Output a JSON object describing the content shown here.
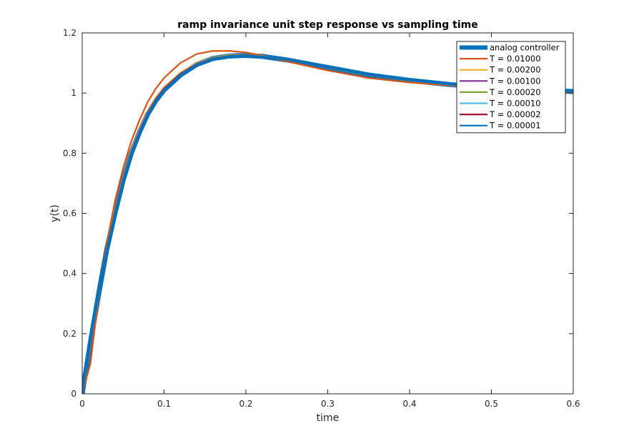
{
  "chart_data": {
    "type": "line",
    "title": "ramp invariance unit step response vs sampling time",
    "xlabel": "time",
    "ylabel": "y(t)",
    "xlim": [
      0,
      0.6
    ],
    "ylim": [
      0,
      1.2
    ],
    "xticks": [
      0,
      0.1,
      0.2,
      0.3,
      0.4,
      0.5,
      0.6
    ],
    "xtick_labels": [
      "0",
      "0.1",
      "0.2",
      "0.3",
      "0.4",
      "0.5",
      "0.6"
    ],
    "yticks": [
      0,
      0.2,
      0.4,
      0.6,
      0.8,
      1.0,
      1.2
    ],
    "ytick_labels": [
      "0",
      "0.2",
      "0.4",
      "0.6",
      "0.8",
      "1",
      "1.2"
    ],
    "grid": false,
    "legend_position": "top-right",
    "series": [
      {
        "name": "analog controller",
        "color": "#0072BD",
        "x": [
          0,
          0.01,
          0.02,
          0.03,
          0.04,
          0.05,
          0.06,
          0.07,
          0.08,
          0.09,
          0.1,
          0.12,
          0.14,
          0.16,
          0.18,
          0.2,
          0.22,
          0.25,
          0.3,
          0.35,
          0.4,
          0.45,
          0.5,
          0.55,
          0.6
        ],
        "y": [
          0,
          0.17,
          0.33,
          0.48,
          0.6,
          0.71,
          0.8,
          0.87,
          0.93,
          0.975,
          1.01,
          1.06,
          1.095,
          1.115,
          1.123,
          1.125,
          1.122,
          1.11,
          1.085,
          1.06,
          1.042,
          1.028,
          1.018,
          1.01,
          1.005
        ]
      },
      {
        "name": "T = 0.01000",
        "color": "#D95319",
        "x": [
          0,
          0.01,
          0.02,
          0.03,
          0.04,
          0.05,
          0.06,
          0.07,
          0.08,
          0.09,
          0.1,
          0.12,
          0.14,
          0.16,
          0.18,
          0.2,
          0.22,
          0.25,
          0.3,
          0.35,
          0.4,
          0.45,
          0.5,
          0.55,
          0.6
        ],
        "y": [
          0,
          0.1,
          0.32,
          0.5,
          0.64,
          0.75,
          0.84,
          0.91,
          0.97,
          1.015,
          1.05,
          1.1,
          1.13,
          1.14,
          1.14,
          1.135,
          1.125,
          1.105,
          1.075,
          1.05,
          1.035,
          1.025,
          1.015,
          1.008,
          1.003
        ]
      },
      {
        "name": "T = 0.00200",
        "color": "#EDB120",
        "x": [
          0,
          0.01,
          0.02,
          0.03,
          0.04,
          0.05,
          0.06,
          0.07,
          0.08,
          0.09,
          0.1,
          0.12,
          0.14,
          0.16,
          0.18,
          0.2,
          0.22,
          0.25,
          0.3,
          0.35,
          0.4,
          0.45,
          0.5,
          0.55,
          0.6
        ],
        "y": [
          0,
          0.16,
          0.33,
          0.48,
          0.61,
          0.72,
          0.81,
          0.88,
          0.94,
          0.985,
          1.02,
          1.068,
          1.1,
          1.118,
          1.126,
          1.127,
          1.123,
          1.11,
          1.084,
          1.059,
          1.041,
          1.027,
          1.017,
          1.01,
          1.005
        ]
      },
      {
        "name": "T = 0.00100",
        "color": "#7E2F8E",
        "x": [
          0,
          0.01,
          0.02,
          0.03,
          0.04,
          0.05,
          0.06,
          0.07,
          0.08,
          0.09,
          0.1,
          0.12,
          0.14,
          0.16,
          0.18,
          0.2,
          0.22,
          0.25,
          0.3,
          0.35,
          0.4,
          0.45,
          0.5,
          0.55,
          0.6
        ],
        "y": [
          0,
          0.165,
          0.33,
          0.48,
          0.605,
          0.715,
          0.805,
          0.875,
          0.935,
          0.98,
          1.015,
          1.064,
          1.097,
          1.116,
          1.124,
          1.126,
          1.122,
          1.11,
          1.085,
          1.06,
          1.042,
          1.028,
          1.018,
          1.01,
          1.005
        ]
      },
      {
        "name": "T = 0.00020",
        "color": "#77AC30",
        "x": [
          0,
          0.01,
          0.02,
          0.03,
          0.04,
          0.05,
          0.06,
          0.07,
          0.08,
          0.09,
          0.1,
          0.12,
          0.14,
          0.16,
          0.18,
          0.2,
          0.22,
          0.25,
          0.3,
          0.35,
          0.4,
          0.45,
          0.5,
          0.55,
          0.6
        ],
        "y": [
          0,
          0.17,
          0.33,
          0.48,
          0.6,
          0.71,
          0.8,
          0.87,
          0.93,
          0.975,
          1.01,
          1.06,
          1.095,
          1.115,
          1.123,
          1.125,
          1.122,
          1.11,
          1.085,
          1.06,
          1.042,
          1.028,
          1.018,
          1.01,
          1.005
        ]
      },
      {
        "name": "T = 0.00010",
        "color": "#4DBEEE",
        "x": [
          0,
          0.01,
          0.02,
          0.03,
          0.04,
          0.05,
          0.06,
          0.07,
          0.08,
          0.09,
          0.1,
          0.12,
          0.14,
          0.16,
          0.18,
          0.2,
          0.22,
          0.25,
          0.3,
          0.35,
          0.4,
          0.45,
          0.5,
          0.55,
          0.6
        ],
        "y": [
          0,
          0.17,
          0.33,
          0.48,
          0.6,
          0.71,
          0.8,
          0.87,
          0.93,
          0.975,
          1.01,
          1.06,
          1.095,
          1.115,
          1.123,
          1.125,
          1.122,
          1.11,
          1.085,
          1.06,
          1.042,
          1.028,
          1.018,
          1.01,
          1.005
        ]
      },
      {
        "name": "T = 0.00002",
        "color": "#A2142F",
        "x": [
          0,
          0.01,
          0.02,
          0.03,
          0.04,
          0.05,
          0.06,
          0.07,
          0.08,
          0.09,
          0.1,
          0.12,
          0.14,
          0.16,
          0.18,
          0.2,
          0.22,
          0.25,
          0.3,
          0.35,
          0.4,
          0.45,
          0.5,
          0.55,
          0.6
        ],
        "y": [
          0,
          0.17,
          0.33,
          0.48,
          0.6,
          0.71,
          0.8,
          0.87,
          0.93,
          0.975,
          1.01,
          1.06,
          1.095,
          1.115,
          1.123,
          1.125,
          1.122,
          1.11,
          1.085,
          1.06,
          1.042,
          1.028,
          1.018,
          1.01,
          1.005
        ]
      },
      {
        "name": "T = 0.00001",
        "color": "#0072BD",
        "x": [
          0,
          0.01,
          0.02,
          0.03,
          0.04,
          0.05,
          0.06,
          0.07,
          0.08,
          0.09,
          0.1,
          0.12,
          0.14,
          0.16,
          0.18,
          0.2,
          0.22,
          0.25,
          0.3,
          0.35,
          0.4,
          0.45,
          0.5,
          0.55,
          0.6
        ],
        "y": [
          0,
          0.17,
          0.33,
          0.48,
          0.6,
          0.71,
          0.8,
          0.87,
          0.93,
          0.975,
          1.01,
          1.06,
          1.095,
          1.115,
          1.123,
          1.125,
          1.122,
          1.11,
          1.085,
          1.06,
          1.042,
          1.028,
          1.018,
          1.01,
          1.005
        ]
      }
    ]
  }
}
